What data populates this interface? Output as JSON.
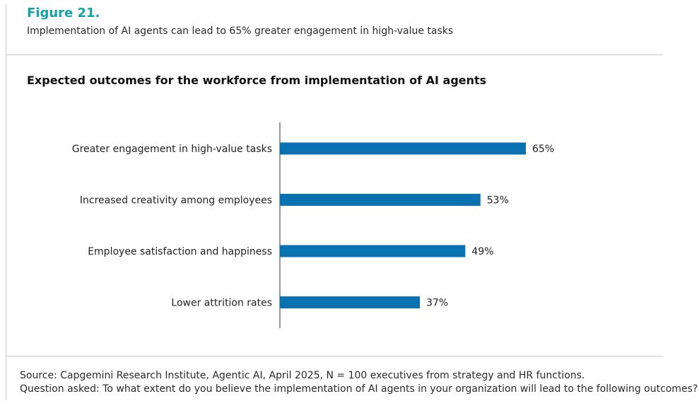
{
  "figure": {
    "label": "Figure 21.",
    "caption": "Implementation of AI agents can lead to 65% greater engagement in high-value tasks"
  },
  "chart_data": {
    "type": "bar",
    "orientation": "horizontal",
    "title": "Expected outcomes for the workforce from implementation of AI agents",
    "categories": [
      "Greater engagement in high-value tasks",
      "Increased creativity among employees",
      "Employee satisfaction and happiness",
      "Lower attrition rates"
    ],
    "values": [
      65,
      53,
      49,
      37
    ],
    "value_labels": [
      "65%",
      "53%",
      "49%",
      "37%"
    ],
    "xlim": [
      0,
      100
    ],
    "bar_color": "#0a72b0",
    "grid": false,
    "legend": "none"
  },
  "footer": {
    "source": "Source: Capgemini Research Institute, Agentic AI, April 2025, N = 100 executives from strategy and HR functions.",
    "question": "Question asked: To what extent do you believe the implementation of AI agents in your organization will lead to the following outcomes?"
  },
  "colors": {
    "accent": "#12a3a8",
    "bar": "#0a72b0",
    "rule": "#c8c8c8"
  }
}
